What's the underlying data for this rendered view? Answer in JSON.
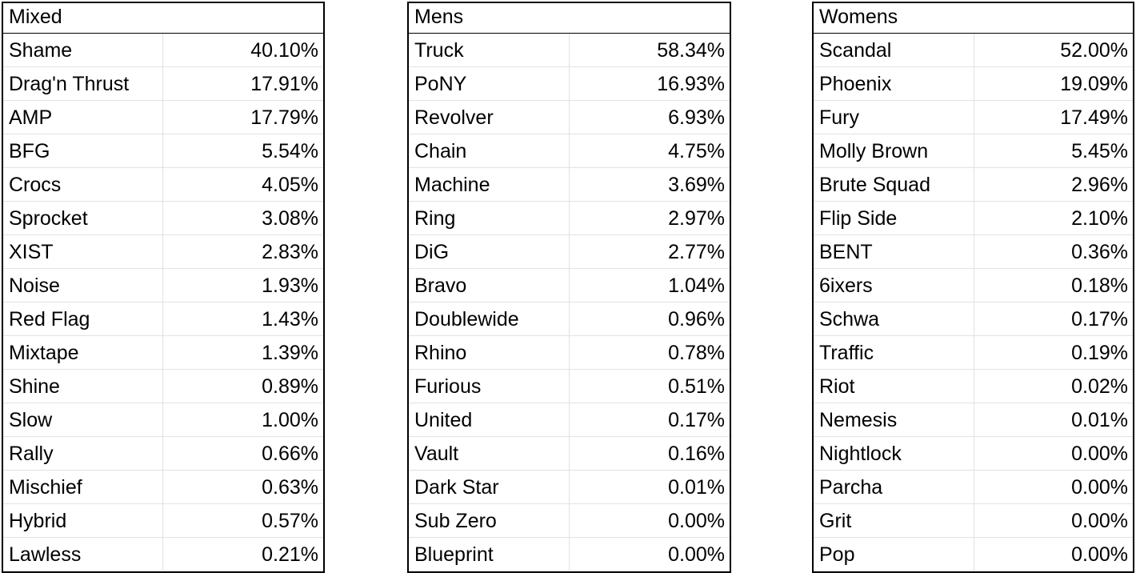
{
  "tables": [
    {
      "title": "Mixed",
      "rows": [
        {
          "team": "Shame",
          "pct": "40.10%"
        },
        {
          "team": "Drag'n Thrust",
          "pct": "17.91%"
        },
        {
          "team": "AMP",
          "pct": "17.79%"
        },
        {
          "team": "BFG",
          "pct": "5.54%"
        },
        {
          "team": "Crocs",
          "pct": "4.05%"
        },
        {
          "team": "Sprocket",
          "pct": "3.08%"
        },
        {
          "team": "XIST",
          "pct": "2.83%"
        },
        {
          "team": "Noise",
          "pct": "1.93%"
        },
        {
          "team": "Red Flag",
          "pct": "1.43%"
        },
        {
          "team": "Mixtape",
          "pct": "1.39%"
        },
        {
          "team": "Shine",
          "pct": "0.89%"
        },
        {
          "team": "Slow",
          "pct": "1.00%"
        },
        {
          "team": "Rally",
          "pct": "0.66%"
        },
        {
          "team": "Mischief",
          "pct": "0.63%"
        },
        {
          "team": "Hybrid",
          "pct": "0.57%"
        },
        {
          "team": "Lawless",
          "pct": "0.21%"
        }
      ]
    },
    {
      "title": "Mens",
      "rows": [
        {
          "team": "Truck",
          "pct": "58.34%"
        },
        {
          "team": "PoNY",
          "pct": "16.93%"
        },
        {
          "team": "Revolver",
          "pct": "6.93%"
        },
        {
          "team": "Chain",
          "pct": "4.75%"
        },
        {
          "team": "Machine",
          "pct": "3.69%"
        },
        {
          "team": "Ring",
          "pct": "2.97%"
        },
        {
          "team": "DiG",
          "pct": "2.77%"
        },
        {
          "team": "Bravo",
          "pct": "1.04%"
        },
        {
          "team": "Doublewide",
          "pct": "0.96%"
        },
        {
          "team": "Rhino",
          "pct": "0.78%"
        },
        {
          "team": "Furious",
          "pct": "0.51%"
        },
        {
          "team": "United",
          "pct": "0.17%"
        },
        {
          "team": "Vault",
          "pct": "0.16%"
        },
        {
          "team": "Dark Star",
          "pct": "0.01%"
        },
        {
          "team": "Sub Zero",
          "pct": "0.00%"
        },
        {
          "team": "Blueprint",
          "pct": "0.00%"
        }
      ]
    },
    {
      "title": "Womens",
      "rows": [
        {
          "team": "Scandal",
          "pct": "52.00%"
        },
        {
          "team": "Phoenix",
          "pct": "19.09%"
        },
        {
          "team": "Fury",
          "pct": "17.49%"
        },
        {
          "team": "Molly Brown",
          "pct": "5.45%"
        },
        {
          "team": "Brute Squad",
          "pct": "2.96%"
        },
        {
          "team": "Flip Side",
          "pct": "2.10%"
        },
        {
          "team": "BENT",
          "pct": "0.36%"
        },
        {
          "team": "6ixers",
          "pct": "0.18%"
        },
        {
          "team": "Schwa",
          "pct": "0.17%"
        },
        {
          "team": "Traffic",
          "pct": "0.19%"
        },
        {
          "team": "Riot",
          "pct": "0.02%"
        },
        {
          "team": "Nemesis",
          "pct": "0.01%"
        },
        {
          "team": "Nightlock",
          "pct": "0.00%"
        },
        {
          "team": "Parcha",
          "pct": "0.00%"
        },
        {
          "team": "Grit",
          "pct": "0.00%"
        },
        {
          "team": "Pop",
          "pct": "0.00%"
        }
      ]
    }
  ]
}
